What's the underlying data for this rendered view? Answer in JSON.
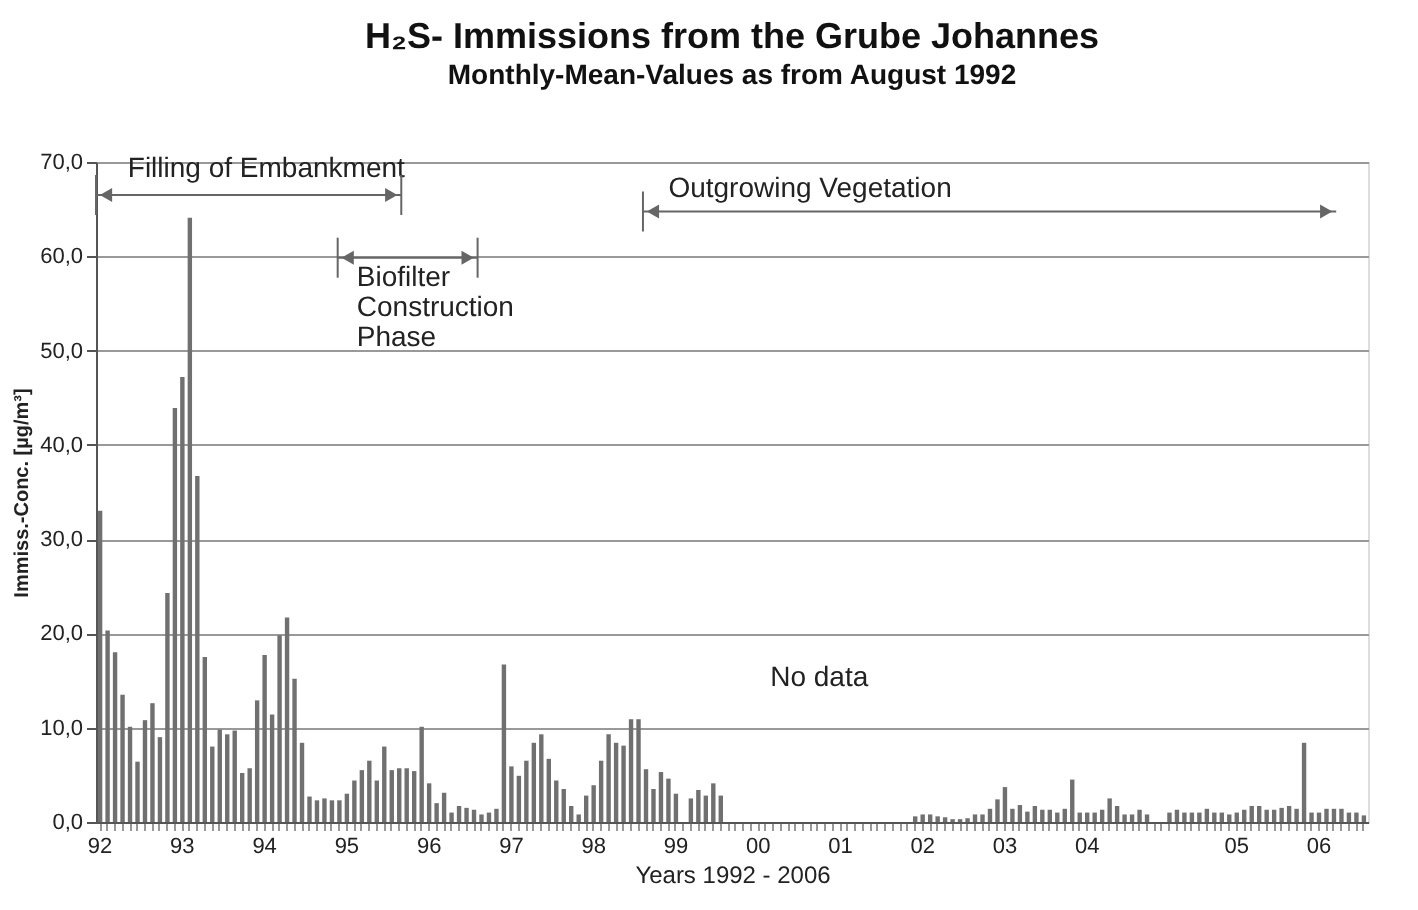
{
  "chart_data": {
    "type": "bar",
    "title": "H₂S- Immissions from the Grube Johannes",
    "subtitle": "Monthly-Mean-Values as from August 1992",
    "xlabel": "Years 1992 - 2006",
    "ylabel": "Immiss.-Conc. [µg/m³]",
    "categories": [
      "92",
      null,
      null,
      null,
      null,
      null,
      null,
      null,
      null,
      null,
      null,
      "93",
      null,
      null,
      null,
      null,
      null,
      null,
      null,
      null,
      null,
      null,
      "94",
      null,
      null,
      null,
      null,
      null,
      null,
      null,
      null,
      null,
      null,
      "95",
      null,
      null,
      null,
      null,
      null,
      null,
      null,
      null,
      null,
      null,
      "96",
      null,
      null,
      null,
      null,
      null,
      null,
      null,
      null,
      null,
      null,
      "97",
      null,
      null,
      null,
      null,
      null,
      null,
      null,
      null,
      null,
      null,
      "98",
      null,
      null,
      null,
      null,
      null,
      null,
      null,
      null,
      null,
      null,
      "99",
      null,
      null,
      null,
      null,
      null,
      null,
      null,
      null,
      null,
      null,
      "00",
      null,
      null,
      null,
      null,
      null,
      null,
      null,
      null,
      null,
      null,
      "01",
      null,
      null,
      null,
      null,
      null,
      null,
      null,
      null,
      null,
      null,
      "02",
      null,
      null,
      null,
      null,
      null,
      null,
      null,
      null,
      null,
      null,
      "03",
      null,
      null,
      null,
      null,
      null,
      null,
      null,
      null,
      null,
      null,
      "04",
      null,
      null,
      null,
      null,
      null,
      null,
      null,
      null,
      null,
      null,
      null,
      null,
      null,
      null,
      null,
      null,
      null,
      null,
      null,
      "05",
      null,
      null,
      null,
      null,
      null,
      null,
      null,
      null,
      null,
      null,
      "06",
      null,
      null,
      null,
      null,
      null,
      null
    ],
    "values": [
      33.0,
      20.3,
      18.0,
      13.5,
      10.1,
      6.4,
      10.8,
      12.6,
      9.0,
      24.3,
      43.9,
      47.2,
      64.1,
      36.7,
      17.5,
      8.0,
      9.8,
      9.3,
      9.7,
      5.2,
      5.7,
      12.9,
      17.7,
      11.4,
      19.8,
      21.7,
      15.2,
      8.4,
      2.7,
      2.3,
      2.5,
      2.3,
      2.3,
      3.0,
      4.4,
      5.5,
      6.5,
      4.4,
      8.0,
      5.5,
      5.7,
      5.7,
      5.4,
      10.1,
      4.1,
      2.0,
      3.1,
      1.0,
      1.7,
      1.5,
      1.3,
      0.8,
      1.0,
      1.4,
      16.7,
      5.9,
      4.9,
      6.5,
      8.4,
      9.3,
      6.7,
      4.4,
      3.5,
      1.7,
      0.8,
      2.8,
      3.9,
      6.5,
      9.3,
      8.4,
      8.1,
      10.9,
      10.9,
      5.6,
      3.5,
      5.3,
      4.6,
      3.0,
      null,
      2.5,
      3.4,
      2.8,
      4.1,
      2.8,
      null,
      null,
      null,
      null,
      null,
      null,
      null,
      null,
      null,
      null,
      null,
      null,
      null,
      null,
      null,
      null,
      null,
      null,
      null,
      null,
      null,
      null,
      null,
      null,
      null,
      0.6,
      0.8,
      0.8,
      0.6,
      0.5,
      0.3,
      0.3,
      0.4,
      0.8,
      0.8,
      1.4,
      2.4,
      3.7,
      1.4,
      1.8,
      1.1,
      1.7,
      1.3,
      1.3,
      1.0,
      1.4,
      4.5,
      1.0,
      1.0,
      1.0,
      1.3,
      2.5,
      1.7,
      0.8,
      0.8,
      1.3,
      0.8,
      null,
      null,
      1.0,
      1.3,
      1.0,
      1.0,
      1.0,
      1.4,
      1.0,
      1.0,
      0.8,
      1.0,
      1.3,
      1.7,
      1.7,
      1.3,
      1.3,
      1.5,
      1.7,
      1.4,
      8.4,
      1.0,
      1.0,
      1.4,
      1.4,
      1.4,
      1.0,
      1.0,
      0.7
    ],
    "color": "#707070",
    "ylim": [
      0,
      70
    ],
    "yticks": [
      {
        "value": 0,
        "label": "0,0"
      },
      {
        "value": 10,
        "label": "10,0"
      },
      {
        "value": 20,
        "label": "20,0"
      },
      {
        "value": 30,
        "label": "30,0"
      },
      {
        "value": 40,
        "label": "40,0"
      },
      {
        "value": 50,
        "label": "50,0"
      },
      {
        "value": 60,
        "label": "60,0"
      },
      {
        "value": 70,
        "label": "70,0"
      }
    ],
    "grid": "y",
    "annotations": [
      "Filling of Embankment",
      "Biofilter\nConstruction\nPhase",
      "Outgrowing Vegetation",
      "No data"
    ]
  }
}
